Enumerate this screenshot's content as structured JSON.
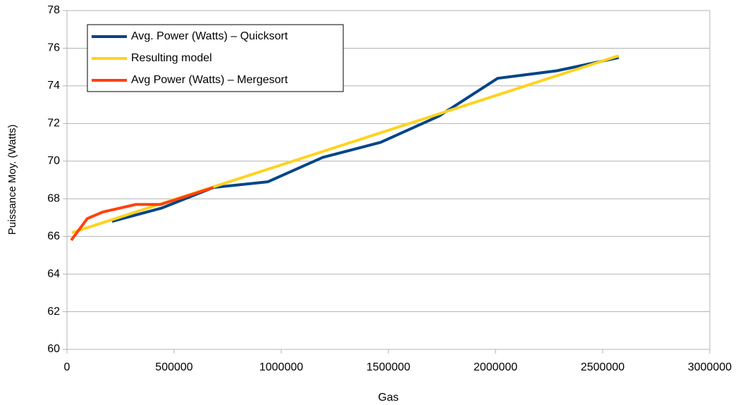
{
  "chart_data": {
    "type": "line",
    "xlabel": "Gas",
    "ylabel": "Puissance Moy. (Watts)",
    "xlim": [
      0,
      3000000
    ],
    "xticks": [
      0,
      500000,
      1000000,
      1500000,
      2000000,
      2500000,
      3000000
    ],
    "ylim": [
      60,
      78
    ],
    "yticks": [
      60,
      62,
      64,
      66,
      68,
      70,
      72,
      74,
      76,
      78
    ],
    "grid": true,
    "legend": "upper left",
    "series": [
      {
        "name": "Avg. Power (Watts) – Quicksort",
        "color": "#004586",
        "x": [
          210000,
          440000,
          684000,
          937000,
          1194000,
          1464000,
          1737000,
          2010000,
          2286000,
          2575000
        ],
        "values": [
          66.8,
          67.5,
          68.6,
          68.9,
          70.2,
          71.0,
          72.4,
          74.4,
          74.8,
          75.5
        ]
      },
      {
        "name": "Resulting model",
        "color": "#ffd320",
        "x": [
          23000,
          2575000
        ],
        "values": [
          66.2,
          75.6
        ]
      },
      {
        "name": "Avg Power (Watts) – Mergesort",
        "color": "#ff420e",
        "x": [
          20000,
          95000,
          168000,
          322000,
          437000,
          684000
        ],
        "values": [
          65.8,
          66.95,
          67.3,
          67.7,
          67.7,
          68.6
        ]
      }
    ]
  }
}
